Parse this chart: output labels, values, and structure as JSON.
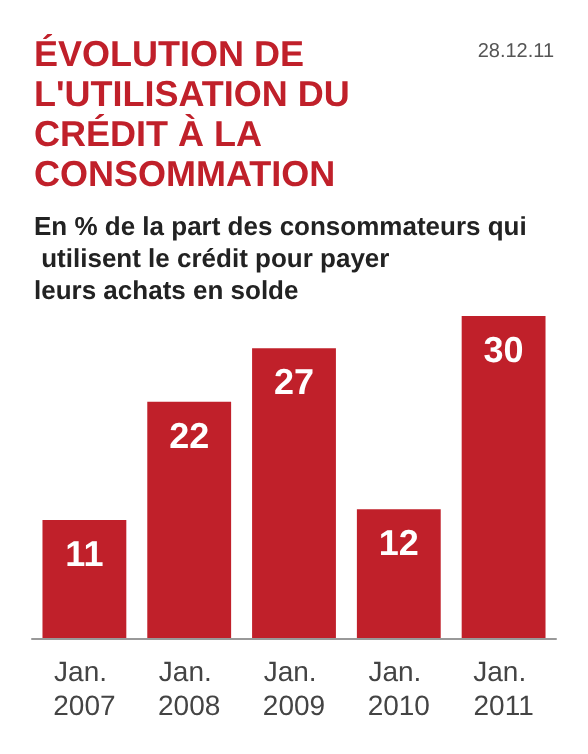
{
  "chart_data": {
    "type": "bar",
    "title": "ÉVOLUTION DE L'UTILISATION DU CRÉDIT À LA CONSOMMATION",
    "subtitle": "En % de la part des consommateurs qui utilisent le crédit pour payer leurs achats en solde",
    "annotations": [
      "28.12.11"
    ],
    "categories": [
      "Jan. 2007",
      "Jan. 2008",
      "Jan. 2009",
      "Jan. 2010",
      "Jan. 2011"
    ],
    "values": [
      11,
      22,
      27,
      12,
      30
    ],
    "color": "#c0202a",
    "data_labels": true
  }
}
